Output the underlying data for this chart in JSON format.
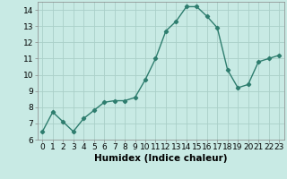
{
  "x": [
    0,
    1,
    2,
    3,
    4,
    5,
    6,
    7,
    8,
    9,
    10,
    11,
    12,
    13,
    14,
    15,
    16,
    17,
    18,
    19,
    20,
    21,
    22,
    23
  ],
  "y": [
    6.5,
    7.7,
    7.1,
    6.5,
    7.3,
    7.8,
    8.3,
    8.4,
    8.4,
    8.6,
    9.7,
    11.0,
    12.7,
    13.3,
    14.2,
    14.2,
    13.6,
    12.9,
    10.3,
    9.2,
    9.4,
    10.8,
    11.0,
    11.2
  ],
  "line_color": "#2e7d6e",
  "marker": "D",
  "marker_size": 2.2,
  "bg_color": "#c8eae4",
  "grid_color": "#aacfc8",
  "xlabel": "Humidex (Indice chaleur)",
  "ylim": [
    6,
    14.5
  ],
  "xlim": [
    -0.5,
    23.5
  ],
  "yticks": [
    6,
    7,
    8,
    9,
    10,
    11,
    12,
    13,
    14
  ],
  "xticks": [
    0,
    1,
    2,
    3,
    4,
    5,
    6,
    7,
    8,
    9,
    10,
    11,
    12,
    13,
    14,
    15,
    16,
    17,
    18,
    19,
    20,
    21,
    22,
    23
  ],
  "tick_fontsize": 6.5,
  "xlabel_fontsize": 7.5,
  "line_width": 1.0
}
